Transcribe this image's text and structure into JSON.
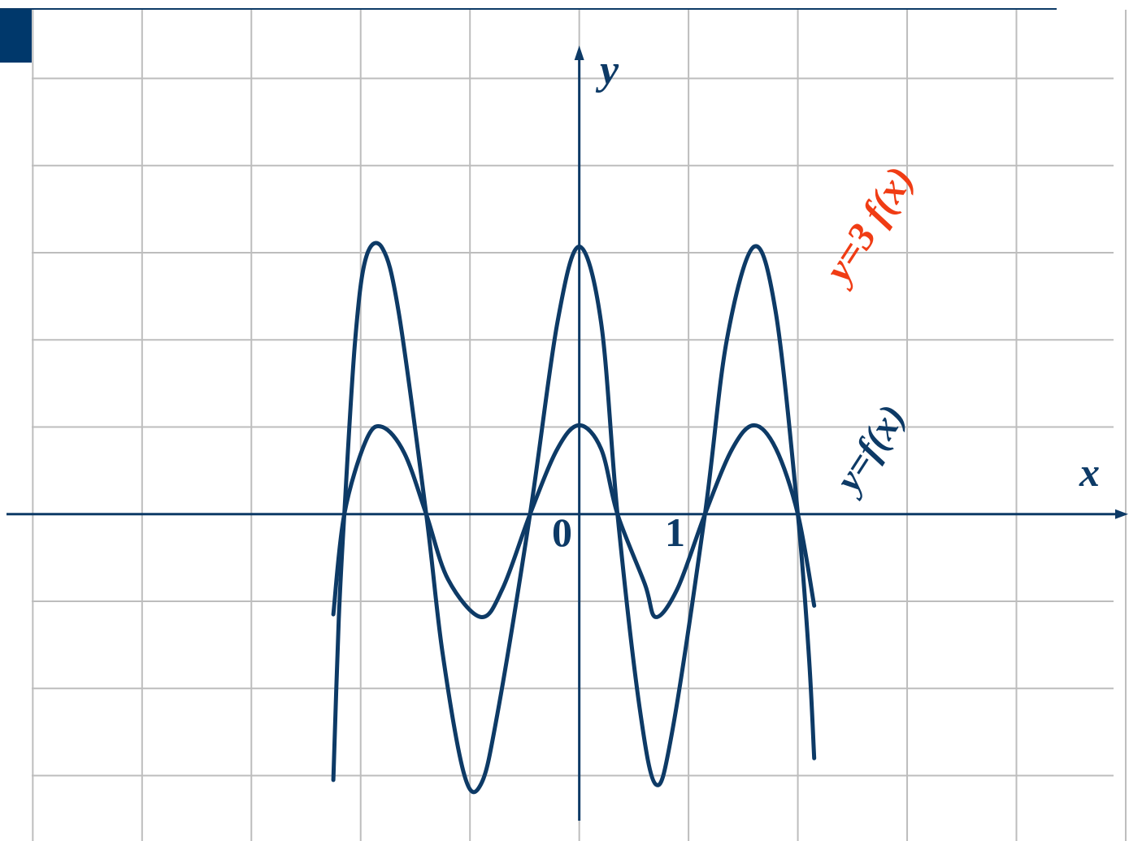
{
  "chart_data": {
    "type": "line",
    "xlabel": "x",
    "ylabel": "y",
    "origin_label": "0",
    "x_tick_label": "1",
    "xlim": [
      -5.3,
      5.03
    ],
    "ylim": [
      -3.75,
      5.9
    ],
    "grid": true,
    "series": [
      {
        "name": "y=f(x)",
        "color": "#0d3a66",
        "label_color": "#0d3a66",
        "points": [
          [
            -2.25,
            -1.15
          ],
          [
            -2.15,
            0.0
          ],
          [
            -1.95,
            0.85
          ],
          [
            -1.8,
            1.0
          ],
          [
            -1.6,
            0.7
          ],
          [
            -1.4,
            0.0
          ],
          [
            -1.2,
            -0.75
          ],
          [
            -0.9,
            -1.18
          ],
          [
            -0.7,
            -0.85
          ],
          [
            -0.45,
            0.0
          ],
          [
            -0.2,
            0.75
          ],
          [
            0.0,
            1.02
          ],
          [
            0.2,
            0.75
          ],
          [
            0.35,
            0.0
          ],
          [
            0.6,
            -0.8
          ],
          [
            0.7,
            -1.18
          ],
          [
            0.9,
            -0.85
          ],
          [
            1.15,
            0.0
          ],
          [
            1.4,
            0.75
          ],
          [
            1.6,
            1.02
          ],
          [
            1.8,
            0.75
          ],
          [
            2.0,
            0.0
          ],
          [
            2.15,
            -1.05
          ]
        ]
      },
      {
        "name": "y=3 f(x)",
        "color": "#0d3a66",
        "label_color": "#f03c14",
        "points": [
          [
            -2.25,
            -3.05
          ],
          [
            -2.2,
            -1.2
          ],
          [
            -2.15,
            0.0
          ],
          [
            -2.05,
            2.0
          ],
          [
            -1.95,
            2.95
          ],
          [
            -1.8,
            3.05
          ],
          [
            -1.65,
            2.3
          ],
          [
            -1.4,
            0.0
          ],
          [
            -1.25,
            -1.6
          ],
          [
            -1.05,
            -3.0
          ],
          [
            -0.9,
            -3.1
          ],
          [
            -0.75,
            -2.3
          ],
          [
            -0.45,
            0.0
          ],
          [
            -0.2,
            2.2
          ],
          [
            0.0,
            3.07
          ],
          [
            0.2,
            2.2
          ],
          [
            0.35,
            0.0
          ],
          [
            0.55,
            -2.2
          ],
          [
            0.7,
            -3.1
          ],
          [
            0.85,
            -2.5
          ],
          [
            1.15,
            0.0
          ],
          [
            1.35,
            2.0
          ],
          [
            1.6,
            3.07
          ],
          [
            1.8,
            2.3
          ],
          [
            2.0,
            0.0
          ],
          [
            2.1,
            -1.6
          ],
          [
            2.15,
            -2.8
          ]
        ]
      }
    ]
  }
}
